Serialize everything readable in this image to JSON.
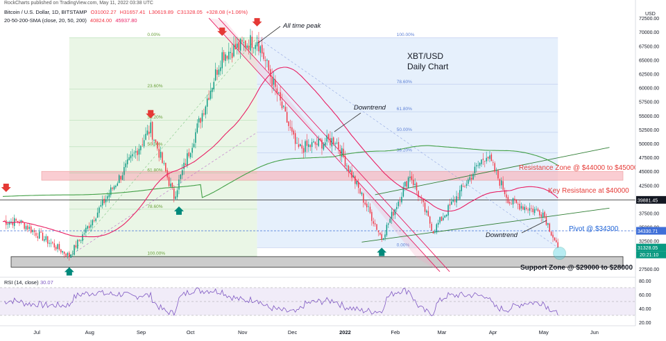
{
  "publisher": "RockCharts published on TradingView.com, May 11, 2022 03:38 UTC",
  "symbol_line": {
    "symbol": "Bitcoin / U.S. Dollar, 1D, BITSTAMP",
    "open": "O31002.27",
    "high": "H31657.41",
    "low": "L30619.89",
    "close": "C31328.05",
    "change": "+328.08 (+1.06%)"
  },
  "sma_line": {
    "label": "20-50-200-SMA (close, 20, 50, 200)",
    "v20": "40824.00",
    "v50": "45937.80"
  },
  "currency": "USD",
  "colors": {
    "up": "#089981",
    "down": "#f23645",
    "sma20": "#e91e63",
    "sma50": "#e91e63",
    "sma200": "#43a047",
    "rsi": "#7e57c2",
    "channel": "#e91e63",
    "resistance_zone": "#f8b8c0",
    "support_zone": "#cccccc",
    "fib_green": "#e8f5e3",
    "fib_blue": "#e3eefc"
  },
  "chart_data": [
    {
      "type": "candlestick",
      "title": "XBT/USD Daily Chart",
      "y_ticks": [
        "72500.00",
        "70000.00",
        "67500.00",
        "65000.00",
        "62500.00",
        "60000.00",
        "57500.00",
        "55000.00",
        "52500.00",
        "50000.00",
        "47500.00",
        "45000.00",
        "42500.00",
        "40000.00",
        "37500.00",
        "35000.00",
        "32500.00",
        "30000.00",
        "27500.00"
      ],
      "x_ticks": [
        "Jul",
        "Aug",
        "Sep",
        "Oct",
        "Nov",
        "Dec",
        "2022",
        "Feb",
        "Mar",
        "Apr",
        "May",
        "Jun"
      ],
      "ylim": [
        26000,
        74500
      ],
      "price_labels": {
        "level_39881": "39881.45",
        "level_34330": "34330.71",
        "last_price": "31328.05",
        "countdown": "20:21:10"
      },
      "fib_levels_left": [
        "0.00%",
        "23.60%",
        "38.20%",
        "50.00%",
        "61.80%",
        "78.60%",
        "100.00%"
      ],
      "fib_levels_right": [
        "100.00%",
        "78.60%",
        "61.80%",
        "50.00%",
        "38.20%",
        "0.00%"
      ],
      "annotations": {
        "ath": "All time peak",
        "downtrend1": "Downtrend",
        "downtrend2": "Downtrend",
        "resistance_zone": "Resistance Zone @ $44000 to $45000",
        "key_resistance": "Key Resistance at $40000",
        "pivot": "Pivot @ $34300",
        "support_zone": "Support Zone @ $29000 to $28000"
      },
      "key_points": {
        "dates": [
          "Jun 20 2021",
          "Jul 20 2021",
          "Sep 7 2021",
          "Sep 21 2021",
          "Oct 20 2021",
          "Nov 10 2021",
          "Dec 4 2021",
          "Dec 27 2021",
          "Jan 24 2022",
          "Feb 10 2022",
          "Feb 24 2022",
          "Mar 28 2022",
          "Apr 11 2022",
          "May 1 2022",
          "May 10 2022"
        ],
        "close": [
          36000,
          29800,
          52700,
          40500,
          66000,
          68800,
          49000,
          50700,
          33000,
          44500,
          34300,
          48200,
          39500,
          37600,
          31328
        ]
      },
      "sma": {
        "sma20": "40824.00",
        "sma50": "45937.80"
      }
    },
    {
      "type": "line",
      "title": "RSI (14, close)",
      "value": "30.07",
      "y_ticks": [
        "80.00",
        "60.00",
        "40.00",
        "20.00"
      ],
      "ylim": [
        15,
        85
      ],
      "bands": [
        70,
        30
      ]
    }
  ]
}
